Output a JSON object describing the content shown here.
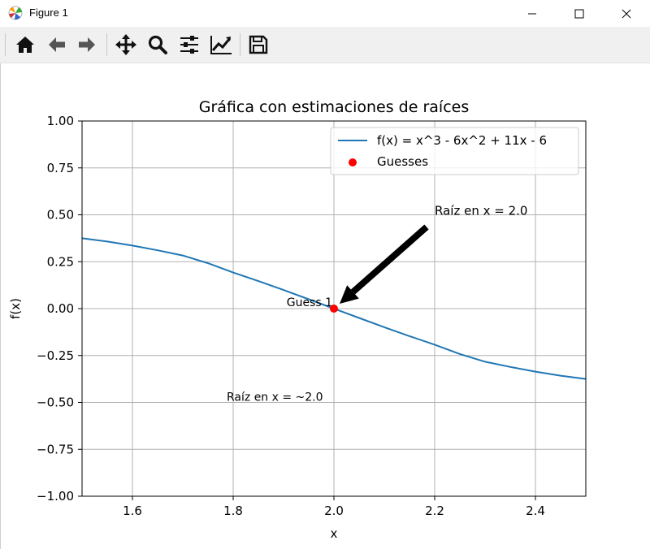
{
  "window": {
    "title": "Figure 1",
    "app_icon": "matplotlib-logo-icon",
    "controls": [
      "minimize-icon",
      "maximize-icon",
      "close-icon"
    ]
  },
  "toolbar": {
    "buttons": [
      {
        "name": "home",
        "icon": "home-icon"
      },
      {
        "name": "back",
        "icon": "arrow-left-icon"
      },
      {
        "name": "forward",
        "icon": "arrow-right-icon"
      },
      {
        "name": "pan",
        "icon": "move-icon"
      },
      {
        "name": "zoom",
        "icon": "magnifier-icon"
      },
      {
        "name": "configure-subplots",
        "icon": "sliders-icon"
      },
      {
        "name": "edit-axes",
        "icon": "line-chart-icon"
      },
      {
        "name": "save",
        "icon": "floppy-disk-icon"
      }
    ]
  },
  "chart_data": {
    "type": "line",
    "title": "Gráfica con estimaciones de raíces",
    "xlabel": "x",
    "ylabel": "f(x)",
    "xlim": [
      1.5,
      2.5
    ],
    "ylim": [
      -1.0,
      1.0
    ],
    "xticks": [
      1.6,
      1.8,
      2.0,
      2.2,
      2.4
    ],
    "xtick_labels": [
      "1.6",
      "1.8",
      "2.0",
      "2.2",
      "2.4"
    ],
    "yticks": [
      1.0,
      0.75,
      0.5,
      0.25,
      0.0,
      -0.25,
      -0.5,
      -0.75,
      -1.0
    ],
    "ytick_labels": [
      "1.00",
      "0.75",
      "0.50",
      "0.25",
      "0.00",
      "−0.25",
      "−0.50",
      "−0.75",
      "−1.00"
    ],
    "grid": true,
    "legend_position": "top-right",
    "series": [
      {
        "name": "f(x) = x^3 - 6x^2 + 11x - 6",
        "type": "line",
        "color": "#1f77b4",
        "x": [
          1.5,
          1.55,
          1.6,
          1.65,
          1.7,
          1.75,
          1.8,
          1.85,
          1.9,
          1.95,
          2.0,
          2.05,
          2.1,
          2.15,
          2.2,
          2.25,
          2.3,
          2.35,
          2.4,
          2.45,
          2.5
        ],
        "y": [
          0.375,
          0.3574,
          0.336,
          0.3109,
          0.283,
          0.2422,
          0.192,
          0.1466,
          0.099,
          0.0499,
          0.0,
          -0.0499,
          -0.099,
          -0.1466,
          -0.192,
          -0.2422,
          -0.283,
          -0.3109,
          -0.336,
          -0.3574,
          -0.375
        ]
      },
      {
        "name": "Guesses",
        "type": "scatter",
        "color": "#ff0000",
        "x": [
          2.0
        ],
        "y": [
          0.0
        ]
      }
    ],
    "annotations": [
      {
        "text": "Guess 1",
        "x": 2.0,
        "y": 0.0
      },
      {
        "text": "Raíz en x = 2.0",
        "x": 2.2,
        "y": 0.5,
        "arrow_to": [
          2.0,
          0.0
        ]
      },
      {
        "text": "Raíz en x = ~2.0",
        "x": 1.8,
        "y": -0.47
      }
    ]
  }
}
